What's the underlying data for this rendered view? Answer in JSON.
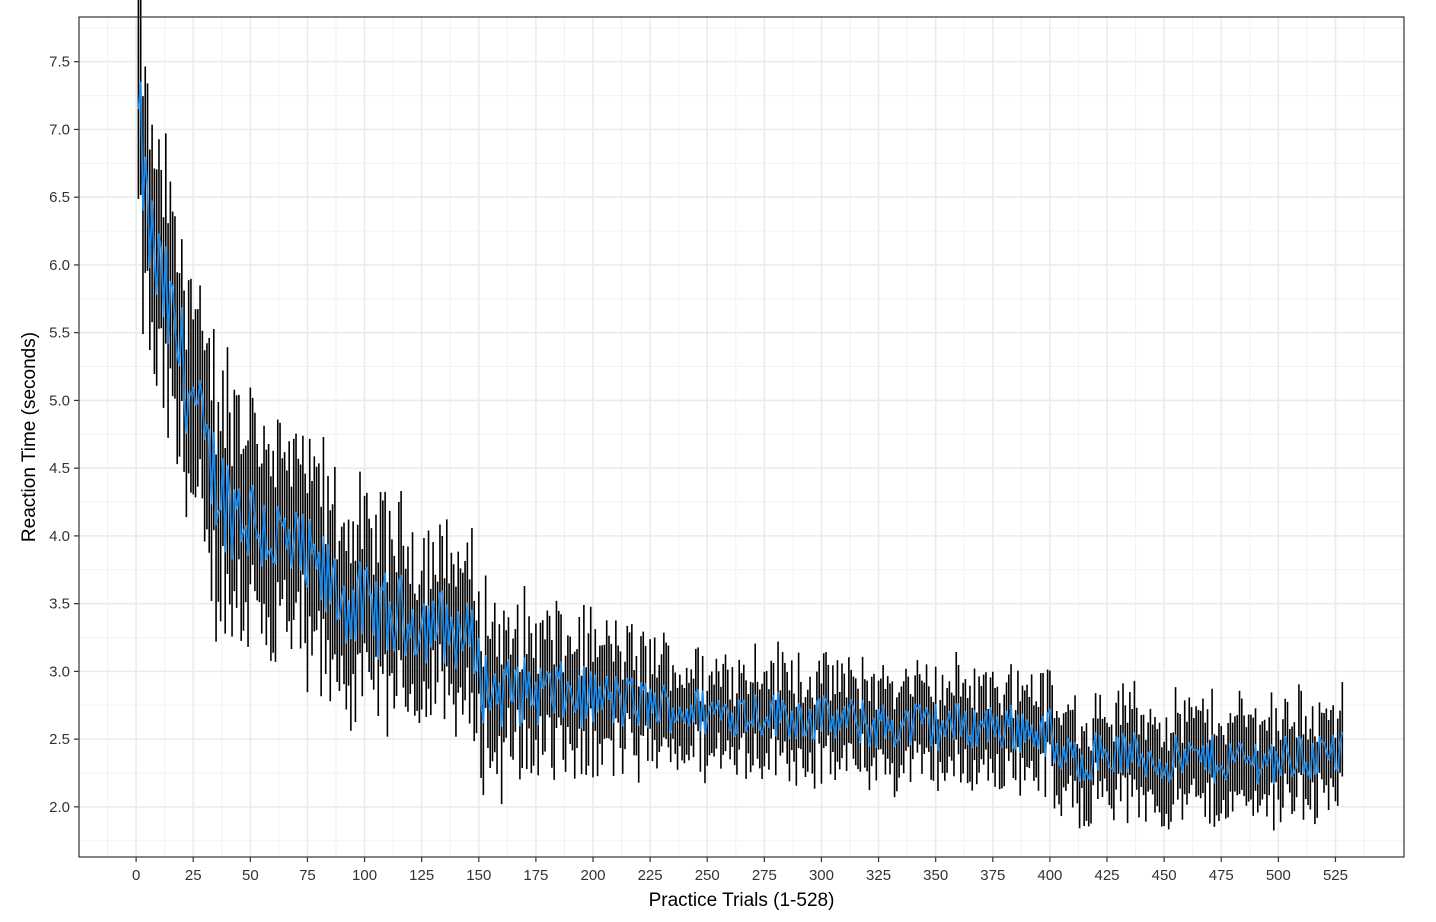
{
  "chart_data": {
    "type": "line",
    "title": "",
    "xlabel": "Practice Trials (1-528)",
    "ylabel": "Reaction Time (seconds)",
    "xlim": [
      -25,
      555
    ],
    "ylim": [
      1.63,
      7.83
    ],
    "xticks": [
      0,
      25,
      50,
      75,
      100,
      125,
      150,
      175,
      200,
      225,
      250,
      275,
      300,
      325,
      350,
      375,
      400,
      425,
      450,
      475,
      500,
      525
    ],
    "yticks": [
      2.0,
      2.5,
      3.0,
      3.5,
      4.0,
      4.5,
      5.0,
      5.5,
      6.0,
      6.5,
      7.0,
      7.5
    ],
    "ytick_labels": [
      "2.0",
      "2.5",
      "3.0",
      "3.5",
      "4.0",
      "4.5",
      "5.0",
      "5.5",
      "6.0",
      "6.5",
      "7.0",
      "7.5"
    ],
    "grid": true,
    "legend": "none",
    "x_range": [
      1,
      528
    ],
    "trend_anchors": {
      "x": [
        1,
        5,
        10,
        15,
        20,
        25,
        30,
        40,
        50,
        60,
        70,
        80,
        90,
        100,
        110,
        120,
        130,
        140,
        148,
        152,
        160,
        175,
        200,
        225,
        250,
        275,
        300,
        325,
        350,
        375,
        400,
        403,
        410,
        425,
        450,
        475,
        500,
        528
      ],
      "y": [
        7.1,
        6.3,
        5.9,
        5.6,
        5.3,
        5.0,
        4.6,
        4.25,
        4.15,
        4.0,
        3.85,
        3.7,
        3.55,
        3.45,
        3.4,
        3.4,
        3.35,
        3.3,
        3.2,
        2.9,
        2.85,
        2.85,
        2.8,
        2.75,
        2.7,
        2.7,
        2.65,
        2.6,
        2.6,
        2.6,
        2.55,
        2.35,
        2.35,
        2.4,
        2.35,
        2.35,
        2.35,
        2.4
      ]
    },
    "series": [
      {
        "type": "errorbar",
        "color": "#000000",
        "half_width_at_start": 0.75,
        "half_width_at_end": 0.3
      },
      {
        "type": "line",
        "color": "#1E88E5",
        "values_at_anchors": [
          7.15,
          6.3,
          5.9,
          5.6,
          5.3,
          5.0,
          4.6,
          4.25,
          4.15,
          4.0,
          3.85,
          3.7,
          3.55,
          3.45,
          3.4,
          3.4,
          3.35,
          3.3,
          3.2,
          2.9,
          2.85,
          2.85,
          2.8,
          2.75,
          2.7,
          2.7,
          2.65,
          2.6,
          2.6,
          2.6,
          2.55,
          2.35,
          2.35,
          2.4,
          2.35,
          2.35,
          2.35,
          2.55
        ]
      }
    ],
    "colors": {
      "errorbar": "#000000",
      "mean_line": "#1E88E5",
      "grid": "#EBEBEB",
      "panel_border": "#333333"
    }
  }
}
